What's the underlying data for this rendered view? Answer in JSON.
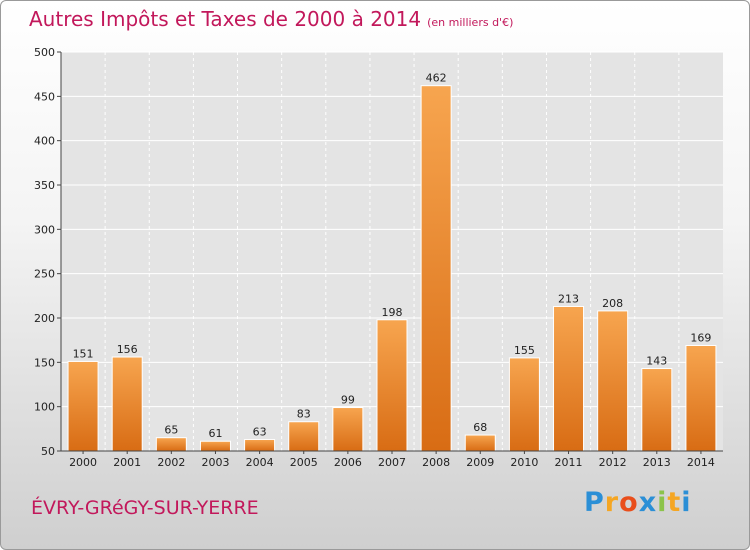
{
  "chart_data": {
    "type": "bar",
    "title": "Autres Impôts et Taxes de 2000 à 2014",
    "unit": "(en milliers d'€)",
    "categories": [
      "2000",
      "2001",
      "2002",
      "2003",
      "2004",
      "2005",
      "2006",
      "2007",
      "2008",
      "2009",
      "2010",
      "2011",
      "2012",
      "2013",
      "2014"
    ],
    "values": [
      151,
      156,
      65,
      61,
      63,
      83,
      99,
      198,
      462,
      68,
      155,
      213,
      208,
      143,
      169
    ],
    "ylim": [
      50,
      500
    ],
    "yticks": [
      50,
      100,
      150,
      200,
      250,
      300,
      350,
      400,
      450,
      500
    ],
    "grid": true,
    "bar_color": "#f0892b"
  },
  "commune": "ÉVRY-GRéGY-SUR-YERRE",
  "logo": {
    "letters": [
      "P",
      "r",
      "o",
      "x",
      "i",
      "t",
      "i"
    ],
    "colors": [
      "#2b8fd6",
      "#f5a623",
      "#e94e1b",
      "#2b8fd6",
      "#8bc34a",
      "#f5a623",
      "#2b8fd6"
    ]
  }
}
